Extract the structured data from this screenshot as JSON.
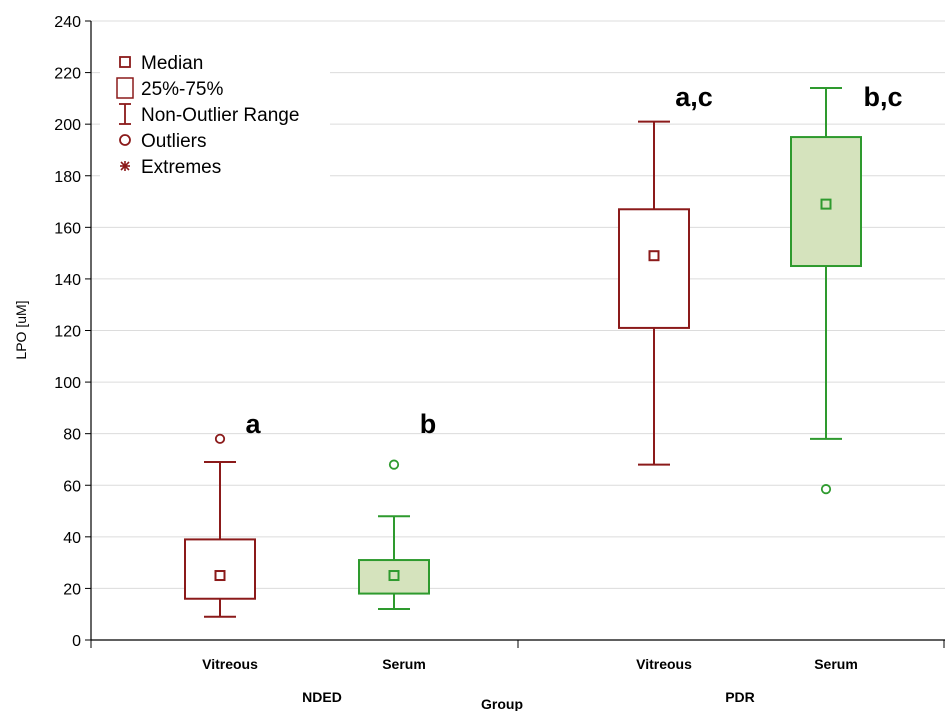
{
  "chart_data": {
    "type": "box",
    "ylabel": "LPO [uM]",
    "xlabel": "Group",
    "ylim": [
      0,
      240
    ],
    "yticks": [
      0,
      20,
      40,
      60,
      80,
      100,
      120,
      140,
      160,
      180,
      200,
      220,
      240
    ],
    "groups": [
      {
        "label": "NDED",
        "boxes": [
          {
            "label": "Vitreous",
            "color": "#8b1a1a",
            "fill": "#ffffff",
            "median": 25,
            "q1": 16,
            "q3": 39,
            "whisker_low": 9,
            "whisker_high": 69,
            "outliers": [
              78
            ],
            "annotation": "a"
          },
          {
            "label": "Serum",
            "color": "#2e9a2e",
            "fill": "#d5e3bd",
            "median": 25,
            "q1": 18,
            "q3": 31,
            "whisker_low": 12,
            "whisker_high": 48,
            "outliers": [
              68
            ],
            "annotation": "b"
          }
        ]
      },
      {
        "label": "PDR",
        "boxes": [
          {
            "label": "Vitreous",
            "color": "#8b1a1a",
            "fill": "#ffffff",
            "median": 149,
            "q1": 121,
            "q3": 167,
            "whisker_low": 68,
            "whisker_high": 201,
            "outliers": [],
            "annotation": "a,c"
          },
          {
            "label": "Serum",
            "color": "#2e9a2e",
            "fill": "#d5e3bd",
            "median": 169,
            "q1": 145,
            "q3": 195,
            "whisker_low": 78,
            "whisker_high": 214,
            "outliers": [
              58.5
            ],
            "annotation": "b,c"
          }
        ]
      }
    ],
    "legend": {
      "placement": "top-left",
      "color": "#8b1a1a",
      "items": [
        {
          "symbol": "median",
          "label": "Median"
        },
        {
          "symbol": "box",
          "label": "25%-75%"
        },
        {
          "symbol": "range",
          "label": "Non-Outlier Range"
        },
        {
          "symbol": "outlier",
          "label": "Outliers"
        },
        {
          "symbol": "extreme",
          "label": "Extremes"
        }
      ]
    }
  }
}
